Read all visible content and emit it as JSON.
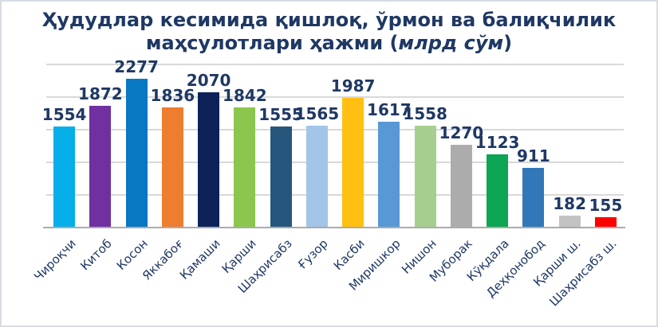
{
  "title": {
    "line1": "Ҳудудлар кесимида қишлоқ, ўрмон ва балиқчилик",
    "line2_prefix": "маҳсулотлари ҳажми (",
    "line2_italic": "млрд сўм",
    "line2_suffix": ")"
  },
  "colors": {
    "background": "#FFFFFF",
    "frame_border": "#D7DCE3",
    "title_text": "#1F3864",
    "value_label_text": "#1F3864",
    "x_axis_label_text": "#1F3864",
    "gridline": "#D9D9D9",
    "axis_line": "#ABABAB"
  },
  "chart_data": {
    "type": "bar",
    "title": "Ҳудудлар кесимида қишлоқ, ўрмон ва балиқчилик маҳсулотлари ҳажми (млрд сўм)",
    "xlabel": "",
    "ylabel": "",
    "legend": false,
    "grid": true,
    "value_labels": true,
    "ylim": [
      0,
      2500
    ],
    "grid_step": 500,
    "categories": [
      "Чироқчи",
      "Китоб",
      "Косон",
      "Яккабоғ",
      "Қамаши",
      "Қарши",
      "Шаҳрисабз",
      "Ғузор",
      "Касби",
      "Миришкор",
      "Нишон",
      "Муборак",
      "Кўқдала",
      "Деҳқонобод",
      "Қарши ш.",
      "Шаҳрисабз ш."
    ],
    "values": [
      1554,
      1872,
      2277,
      1836,
      2070,
      1842,
      1555,
      1565,
      1987,
      1617,
      1558,
      1270,
      1123,
      911,
      182,
      155
    ],
    "bar_colors": [
      "#06AEEA",
      "#7030A0",
      "#0878C2",
      "#EE7D2F",
      "#0C2259",
      "#8CC64C",
      "#27567D",
      "#A2C5E8",
      "#FFC011",
      "#5898D6",
      "#A6CF8F",
      "#ACACAC",
      "#0CA553",
      "#3277B8",
      "#C3C3C3",
      "#FF0000"
    ]
  }
}
